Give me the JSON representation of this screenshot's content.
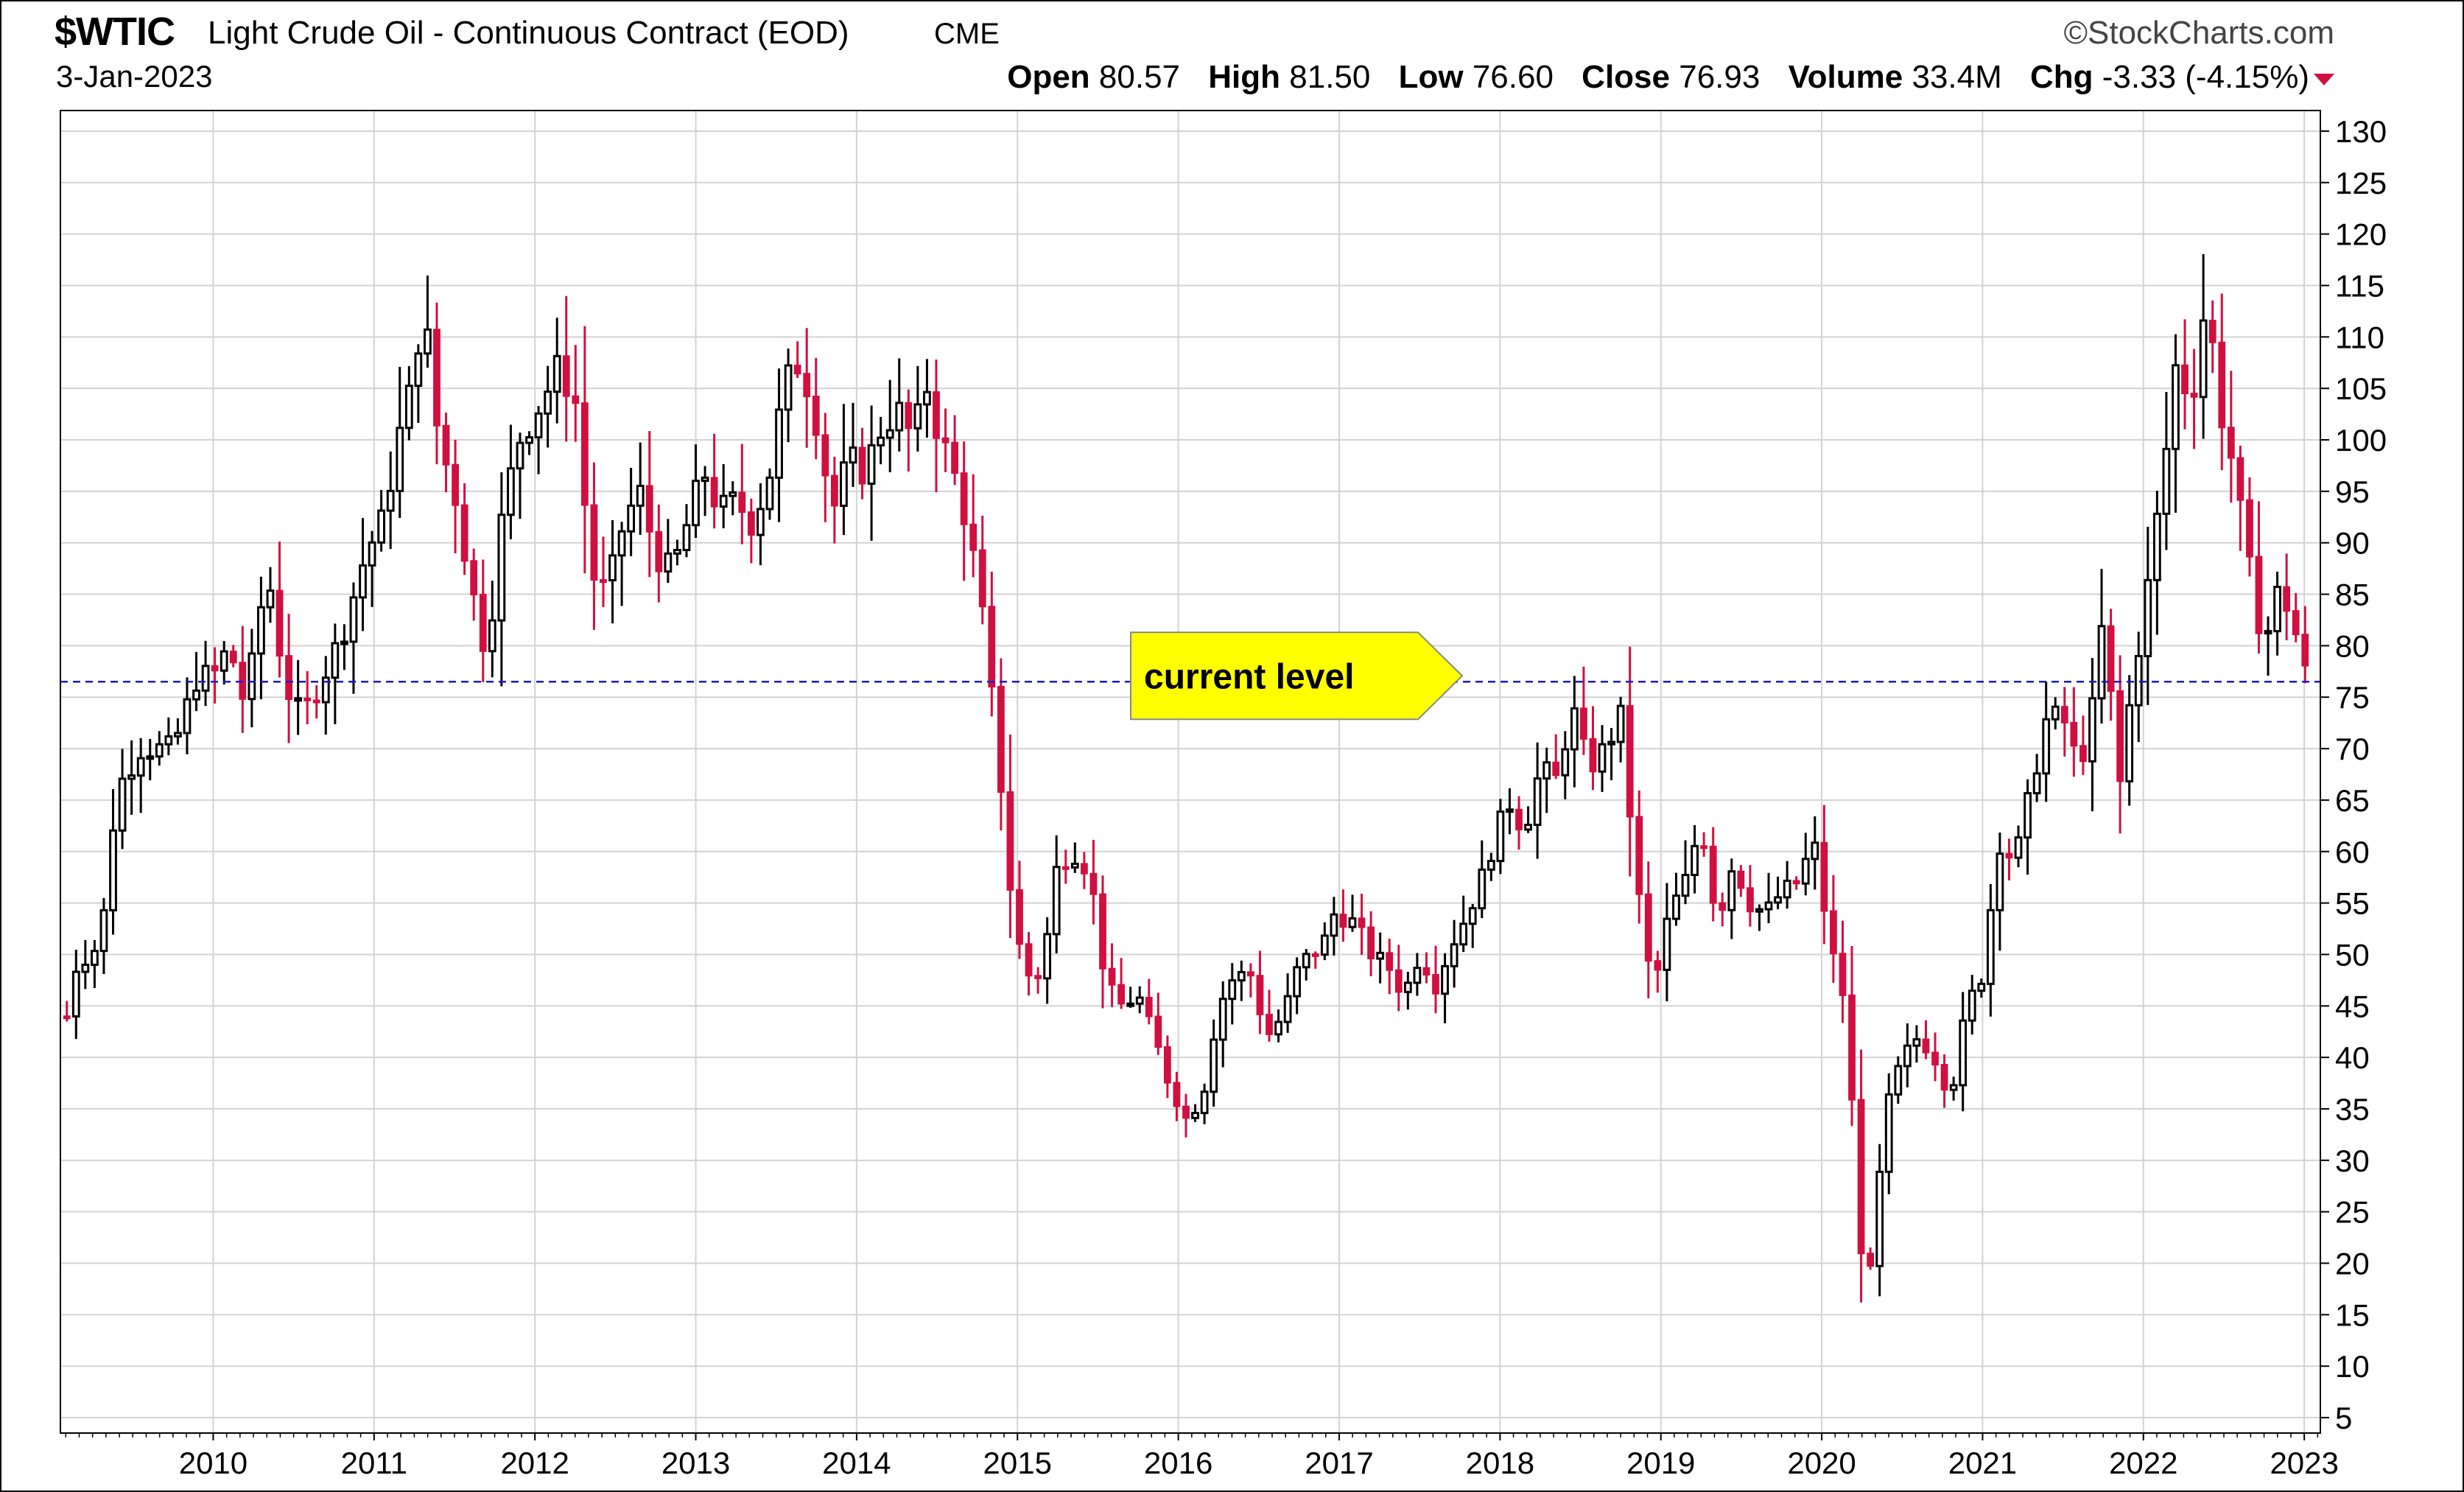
{
  "header": {
    "ticker": "$WTIC",
    "title": "Light Crude Oil - Continuous Contract (EOD)",
    "exchange": "CME",
    "brand": "©StockCharts.com",
    "date": "3-Jan-2023",
    "open_label": "Open",
    "open": "80.57",
    "high_label": "High",
    "high": "81.50",
    "low_label": "Low",
    "low": "76.60",
    "close_label": "Close",
    "close": "76.93",
    "volume_label": "Volume",
    "volume": "33.4M",
    "chg_label": "Chg",
    "chg": "-3.33 (-4.15%)"
  },
  "colors": {
    "up": "#000000",
    "down": "#d01040",
    "grid": "#d3d3d3",
    "level": "#1a1acc",
    "callout": "#ffff00"
  },
  "chart_data": {
    "type": "candlestick",
    "xlim": [
      2009.05,
      2023.1
    ],
    "ylim": [
      3.5,
      132
    ],
    "y_ticks": [
      5,
      10,
      15,
      20,
      25,
      30,
      35,
      40,
      45,
      50,
      55,
      60,
      65,
      70,
      75,
      80,
      85,
      90,
      95,
      100,
      105,
      110,
      115,
      120,
      125,
      130
    ],
    "x_ticks": [
      "2010",
      "2011",
      "2012",
      "2013",
      "2014",
      "2015",
      "2016",
      "2017",
      "2018",
      "2019",
      "2020",
      "2021",
      "2022",
      "2023"
    ],
    "grid": true,
    "current_level": 76.5,
    "annotation": "current level",
    "close_path": [
      [
        2009.1,
        44
      ],
      [
        2009.15,
        49
      ],
      [
        2009.3,
        51
      ],
      [
        2009.4,
        66
      ],
      [
        2009.55,
        70
      ],
      [
        2009.75,
        70
      ],
      [
        2009.9,
        77
      ],
      [
        2010.0,
        77
      ],
      [
        2010.1,
        80
      ],
      [
        2010.2,
        74
      ],
      [
        2010.3,
        84
      ],
      [
        2010.35,
        86
      ],
      [
        2010.45,
        76
      ],
      [
        2010.55,
        73
      ],
      [
        2010.65,
        76
      ],
      [
        2010.8,
        81
      ],
      [
        2010.95,
        89
      ],
      [
        2011.05,
        92
      ],
      [
        2011.15,
        100
      ],
      [
        2011.25,
        106
      ],
      [
        2011.3,
        114
      ],
      [
        2011.4,
        100
      ],
      [
        2011.5,
        95
      ],
      [
        2011.6,
        86
      ],
      [
        2011.7,
        79
      ],
      [
        2011.8,
        93
      ],
      [
        2011.9,
        100
      ],
      [
        2012.05,
        104
      ],
      [
        2012.15,
        107
      ],
      [
        2012.25,
        104
      ],
      [
        2012.35,
        87
      ],
      [
        2012.45,
        85
      ],
      [
        2012.55,
        92
      ],
      [
        2012.65,
        95
      ],
      [
        2012.75,
        89
      ],
      [
        2012.85,
        87
      ],
      [
        2012.95,
        92
      ],
      [
        2013.05,
        97
      ],
      [
        2013.15,
        93
      ],
      [
        2013.25,
        94
      ],
      [
        2013.35,
        92
      ],
      [
        2013.45,
        96
      ],
      [
        2013.55,
        105
      ],
      [
        2013.65,
        108
      ],
      [
        2013.75,
        102
      ],
      [
        2013.85,
        93
      ],
      [
        2013.95,
        98
      ],
      [
        2014.05,
        97
      ],
      [
        2014.15,
        101
      ],
      [
        2014.25,
        103
      ],
      [
        2014.35,
        100
      ],
      [
        2014.45,
        106
      ],
      [
        2014.5,
        101
      ],
      [
        2014.6,
        97
      ],
      [
        2014.7,
        91
      ],
      [
        2014.8,
        81
      ],
      [
        2014.9,
        66
      ],
      [
        2014.97,
        54
      ],
      [
        2015.05,
        48
      ],
      [
        2015.15,
        48
      ],
      [
        2015.25,
        59
      ],
      [
        2015.35,
        60
      ],
      [
        2015.45,
        58
      ],
      [
        2015.55,
        47
      ],
      [
        2015.65,
        45
      ],
      [
        2015.75,
        46
      ],
      [
        2015.85,
        42
      ],
      [
        2015.95,
        37
      ],
      [
        2016.05,
        34
      ],
      [
        2016.15,
        36
      ],
      [
        2016.25,
        45
      ],
      [
        2016.35,
        48
      ],
      [
        2016.45,
        48
      ],
      [
        2016.55,
        42
      ],
      [
        2016.65,
        44
      ],
      [
        2016.75,
        49
      ],
      [
        2016.9,
        51
      ],
      [
        2016.97,
        54
      ],
      [
        2017.1,
        53
      ],
      [
        2017.2,
        50
      ],
      [
        2017.3,
        49
      ],
      [
        2017.4,
        46
      ],
      [
        2017.5,
        50
      ],
      [
        2017.6,
        47
      ],
      [
        2017.7,
        51
      ],
      [
        2017.8,
        54
      ],
      [
        2017.9,
        58
      ],
      [
        2018.05,
        65
      ],
      [
        2018.15,
        62
      ],
      [
        2018.25,
        68
      ],
      [
        2018.35,
        67
      ],
      [
        2018.45,
        74
      ],
      [
        2018.55,
        68
      ],
      [
        2018.65,
        70
      ],
      [
        2018.75,
        73
      ],
      [
        2018.85,
        57
      ],
      [
        2018.95,
        46
      ],
      [
        2019.05,
        54
      ],
      [
        2019.15,
        57
      ],
      [
        2019.25,
        63
      ],
      [
        2019.35,
        53
      ],
      [
        2019.45,
        59
      ],
      [
        2019.55,
        55
      ],
      [
        2019.65,
        54
      ],
      [
        2019.75,
        56
      ],
      [
        2019.85,
        57
      ],
      [
        2019.95,
        61
      ],
      [
        2020.05,
        51
      ],
      [
        2020.15,
        45
      ],
      [
        2020.25,
        20
      ],
      [
        2020.3,
        19
      ],
      [
        2020.4,
        35
      ],
      [
        2020.5,
        40
      ],
      [
        2020.6,
        42
      ],
      [
        2020.7,
        40
      ],
      [
        2020.8,
        36
      ],
      [
        2020.9,
        45
      ],
      [
        2021.0,
        48
      ],
      [
        2021.1,
        61
      ],
      [
        2021.2,
        59
      ],
      [
        2021.3,
        66
      ],
      [
        2021.4,
        73
      ],
      [
        2021.5,
        73
      ],
      [
        2021.6,
        68
      ],
      [
        2021.7,
        75
      ],
      [
        2021.75,
        83
      ],
      [
        2021.85,
        66
      ],
      [
        2021.92,
        75
      ],
      [
        2022.05,
        88
      ],
      [
        2022.15,
        100
      ],
      [
        2022.2,
        107
      ],
      [
        2022.3,
        104
      ],
      [
        2022.4,
        115
      ],
      [
        2022.45,
        105
      ],
      [
        2022.55,
        98
      ],
      [
        2022.65,
        88
      ],
      [
        2022.75,
        80
      ],
      [
        2022.85,
        86
      ],
      [
        2022.95,
        81
      ],
      [
        2023.01,
        77
      ]
    ]
  }
}
